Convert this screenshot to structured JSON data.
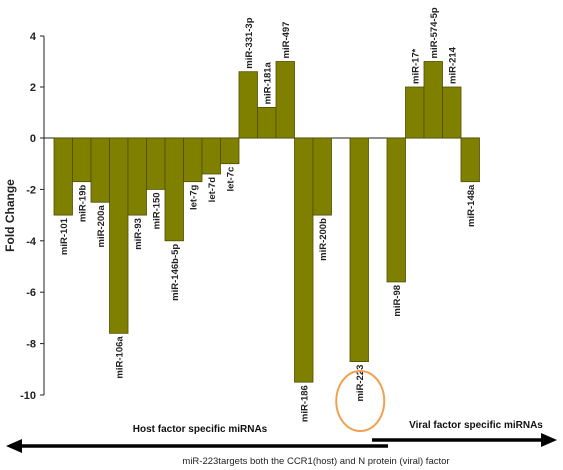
{
  "chart_data": {
    "type": "bar",
    "ylabel": "Fold Change",
    "xlabel": "",
    "ylim": [
      -10,
      4
    ],
    "yticks": [
      4,
      2,
      0,
      -2,
      -4,
      -6,
      -8,
      -10
    ],
    "grid": false,
    "bar_color": "#808000",
    "bar_stroke": "#4d4d00",
    "bars": [
      {
        "label": "miR-101",
        "value": -3.0
      },
      {
        "label": "miR-19b",
        "value": -1.7
      },
      {
        "label": "miR-200a",
        "value": -2.5
      },
      {
        "label": "miR-106a",
        "value": -7.6
      },
      {
        "label": "miR-93",
        "value": -3.0
      },
      {
        "label": "miR-150",
        "value": -2.0
      },
      {
        "label": "miR-146b-5p",
        "value": -4.0
      },
      {
        "label": "let-7g",
        "value": -1.7
      },
      {
        "label": "let-7d",
        "value": -1.4
      },
      {
        "label": "let-7c",
        "value": -1.0
      },
      {
        "label": "miR-331-3p",
        "value": 2.6
      },
      {
        "label": "miR-181a",
        "value": 1.2
      },
      {
        "label": "miR-497",
        "value": 3.0
      },
      {
        "label": "miR-186",
        "value": -9.5
      },
      {
        "label": "miR-200b",
        "value": -3.0
      },
      {
        "label": "",
        "value": null
      },
      {
        "label": "miR-223",
        "value": -8.7
      },
      {
        "label": "",
        "value": null
      },
      {
        "label": "miR-98",
        "value": -5.6
      },
      {
        "label": "miR-17*",
        "value": 2.0
      },
      {
        "label": "miR-574-5p",
        "value": 3.0
      },
      {
        "label": "miR-214",
        "value": 2.0
      },
      {
        "label": "miR-148a",
        "value": -1.7
      }
    ],
    "highlight": "miR-223",
    "highlight_color": "#f0a050",
    "annotations": {
      "host_label": "Host factor specific miRNAs",
      "viral_label": "Viral factor specific miRNAs",
      "caption": "miR-223targets both the CCR1(host) and N protein (viral) factor"
    }
  }
}
